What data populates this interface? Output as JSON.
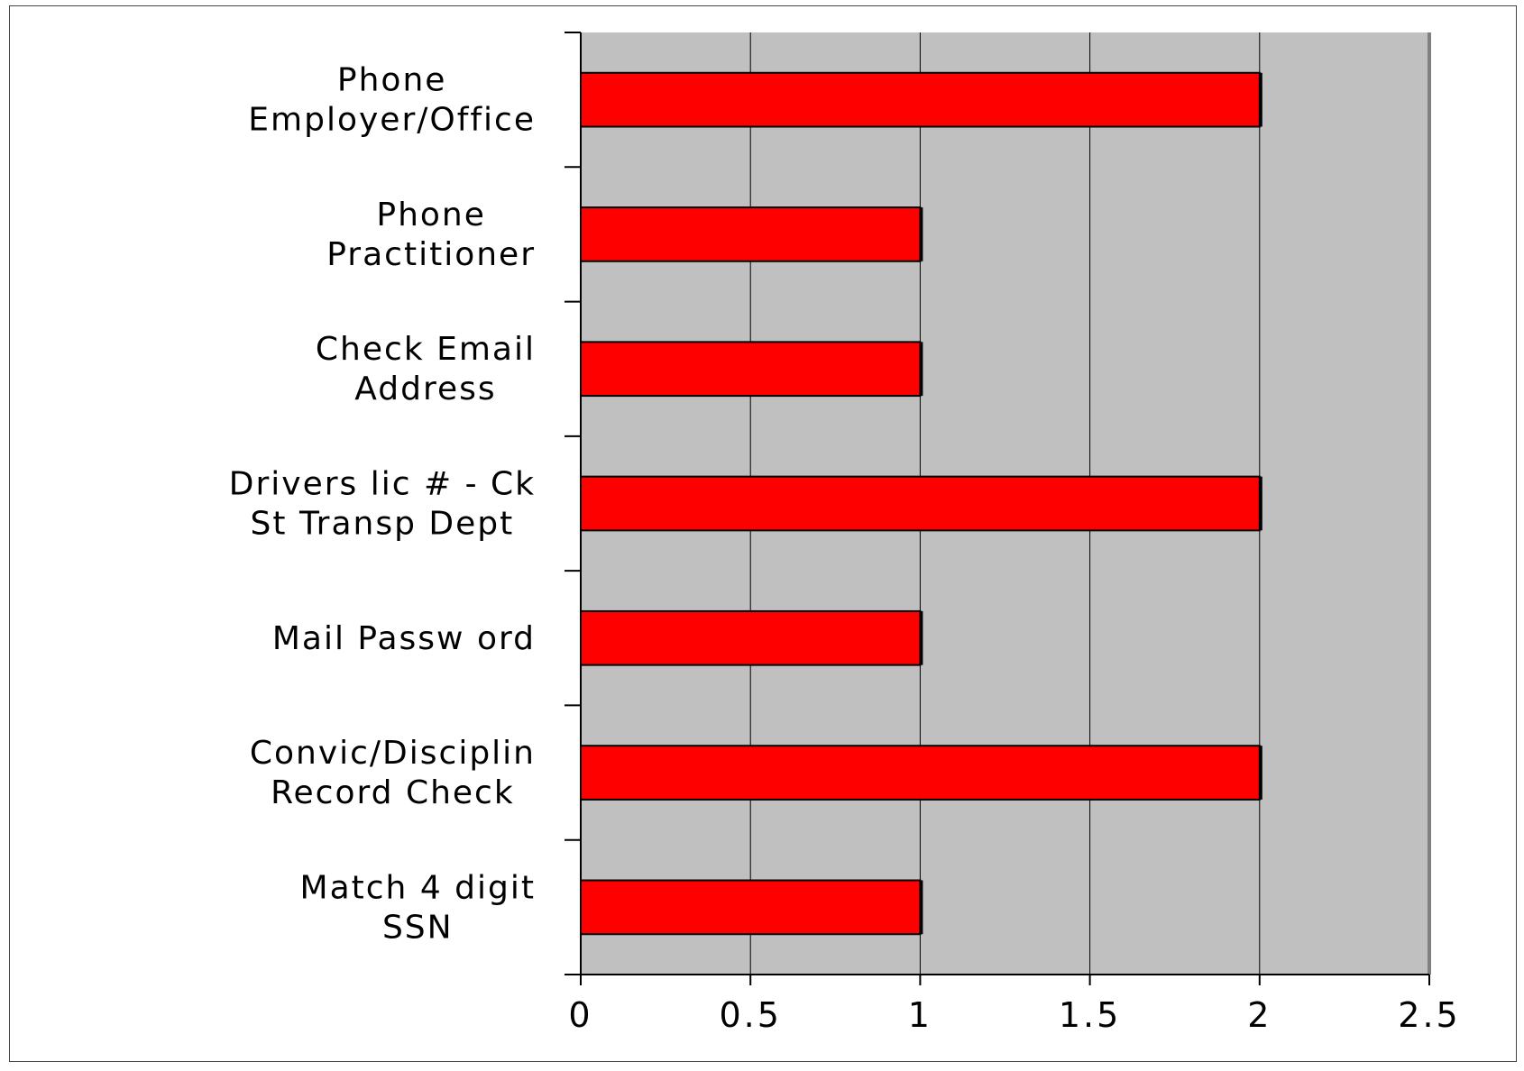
{
  "chart_data": {
    "type": "bar",
    "orientation": "horizontal",
    "categories": [
      [
        "Phone",
        "Employer/Office"
      ],
      [
        "Phone",
        "Practitioner"
      ],
      [
        "Check Email",
        "Address"
      ],
      [
        "Drivers lic # - Ck",
        "St Transp Dept"
      ],
      [
        "Mail Passw ord"
      ],
      [
        "Convic/Disciplin",
        "Record Check"
      ],
      [
        "Match 4 digit",
        "SSN"
      ]
    ],
    "values": [
      2,
      1,
      1,
      2,
      1,
      2,
      1
    ],
    "xlim": [
      0,
      2.5
    ],
    "xticks": [
      "0",
      "0.5",
      "1",
      "1.5",
      "2",
      "2.5"
    ],
    "title": "",
    "xlabel": "",
    "ylabel": "",
    "grid": "vertical",
    "legend": "none",
    "colors": {
      "bar_fill": "#ff0000",
      "bar_stroke": "#000000",
      "plot_background": "#c0c0c0",
      "grid": "#000000"
    }
  }
}
